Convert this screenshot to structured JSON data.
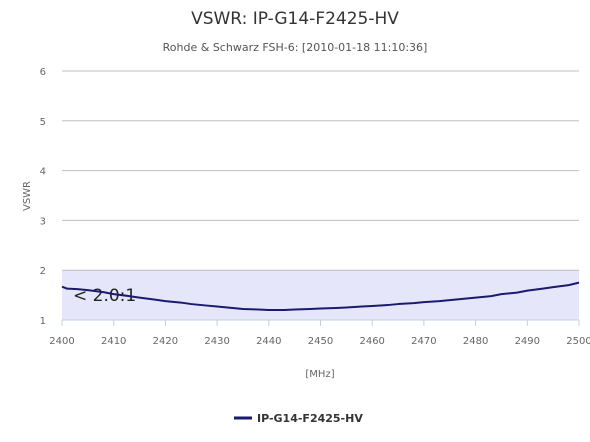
{
  "chart_data": {
    "type": "line",
    "title": "VSWR: IP-G14-F2425-HV",
    "subtitle": "Rohde & Schwarz FSH-6: [2010-01-18 11:10:36]",
    "xlabel": "[MHz]",
    "ylabel": "VSWR",
    "xlim": [
      2400,
      2500
    ],
    "ylim": [
      1,
      6
    ],
    "x_ticks": [
      "2400",
      "2410",
      "2420",
      "2430",
      "2440",
      "2450",
      "2460",
      "2470",
      "2480",
      "2490",
      "2500"
    ],
    "y_ticks": [
      "1",
      "2",
      "3",
      "4",
      "5",
      "6"
    ],
    "grid": "horizontal",
    "legend": "bottom-center",
    "band": {
      "from": 1,
      "to": 2,
      "label": "< 2.0:1",
      "color": "#e6e6fa"
    },
    "series": [
      {
        "name": "IP-G14-F2425-HV",
        "color": "#1a1a6e",
        "x": [
          2400,
          2401,
          2403,
          2405,
          2408,
          2410,
          2413,
          2415,
          2418,
          2420,
          2423,
          2425,
          2428,
          2430,
          2433,
          2435,
          2438,
          2440,
          2443,
          2445,
          2448,
          2450,
          2453,
          2455,
          2458,
          2460,
          2463,
          2465,
          2468,
          2470,
          2473,
          2475,
          2478,
          2480,
          2483,
          2485,
          2488,
          2490,
          2493,
          2495,
          2498,
          2500
        ],
        "y": [
          1.67,
          1.63,
          1.62,
          1.6,
          1.56,
          1.52,
          1.48,
          1.45,
          1.41,
          1.38,
          1.35,
          1.32,
          1.29,
          1.27,
          1.24,
          1.22,
          1.21,
          1.2,
          1.2,
          1.21,
          1.22,
          1.23,
          1.24,
          1.25,
          1.27,
          1.28,
          1.3,
          1.32,
          1.34,
          1.36,
          1.38,
          1.4,
          1.43,
          1.45,
          1.48,
          1.52,
          1.55,
          1.59,
          1.63,
          1.66,
          1.7,
          1.75
        ]
      }
    ]
  }
}
